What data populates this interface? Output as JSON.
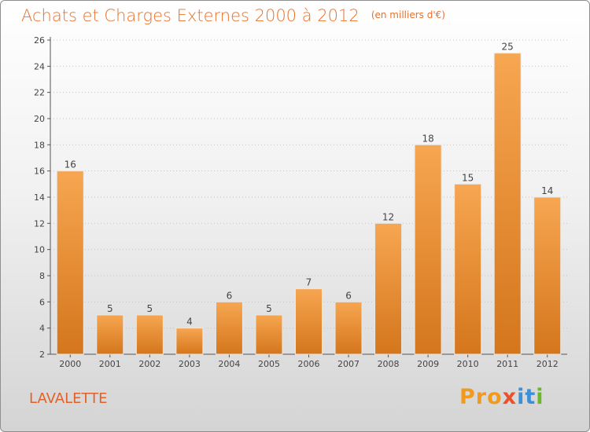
{
  "header": {
    "title": "Achats et Charges Externes 2000 à 2012",
    "unit": "(en milliers d'€)"
  },
  "footer": {
    "place": "LAVALETTE",
    "brand": "Proxiti",
    "brand_parts": [
      "Pro",
      "x",
      "it",
      "i"
    ]
  },
  "colors": {
    "bar": "#f5a04a",
    "bar_dark": "#d97a1f",
    "title": "#e8712a",
    "grid": "#bdbdbd"
  },
  "chart_data": {
    "type": "bar",
    "categories": [
      "2000",
      "2001",
      "2002",
      "2003",
      "2004",
      "2005",
      "2006",
      "2007",
      "2008",
      "2009",
      "2010",
      "2011",
      "2012"
    ],
    "values": [
      16,
      5,
      5,
      4,
      6,
      5,
      7,
      6,
      12,
      18,
      15,
      25,
      14
    ],
    "title": "Achats et Charges Externes 2000 à 2012",
    "xlabel": "",
    "ylabel": "",
    "ylim": [
      2,
      26
    ],
    "yticks": [
      2,
      4,
      6,
      8,
      10,
      12,
      14,
      16,
      18,
      20,
      22,
      24,
      26
    ],
    "grid": "horizontal-dotted",
    "legend": "none"
  }
}
